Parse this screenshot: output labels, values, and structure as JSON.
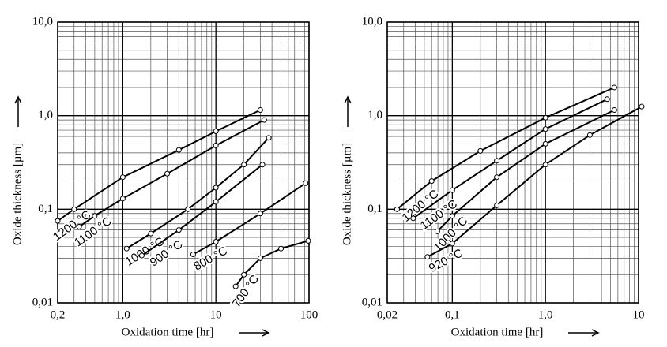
{
  "chart_data": [
    {
      "type": "line",
      "xlabel": "Oxidation time [hr]",
      "ylabel": "Oxide thickness [µm]",
      "xscale": "log",
      "yscale": "log",
      "grid": true,
      "xlim": [
        0.2,
        100
      ],
      "ylim": [
        0.01,
        10
      ],
      "xticks": [
        {
          "value": 0.2,
          "label": "0,2"
        },
        {
          "value": 1,
          "label": "1,0"
        },
        10,
        100
      ],
      "yticks": [
        {
          "value": 0.01,
          "label": "0,01"
        },
        {
          "value": 0.1,
          "label": "0,1"
        },
        {
          "value": 1,
          "label": "1,0"
        },
        {
          "value": 10,
          "label": "10,0"
        }
      ],
      "series": [
        {
          "name": "1200 °C",
          "color": "#000000",
          "x": [
            0.2,
            0.3,
            1,
            4,
            10,
            30
          ],
          "values": [
            0.075,
            0.1,
            0.22,
            0.43,
            0.68,
            1.15
          ]
        },
        {
          "name": "1100 °C",
          "color": "#000000",
          "x": [
            0.34,
            0.5,
            1,
            3,
            10,
            33
          ],
          "values": [
            0.065,
            0.085,
            0.13,
            0.24,
            0.48,
            0.9
          ]
        },
        {
          "name": "1000 °C",
          "color": "#000000",
          "x": [
            1.1,
            2,
            5,
            10,
            20,
            37
          ],
          "values": [
            0.038,
            0.055,
            0.1,
            0.17,
            0.3,
            0.58
          ]
        },
        {
          "name": "900 °C",
          "color": "#000000",
          "x": [
            1.6,
            4,
            10,
            31.6
          ],
          "values": [
            0.032,
            0.06,
            0.12,
            0.3
          ]
        },
        {
          "name": "800 °C",
          "color": "#000000",
          "x": [
            5.7,
            10,
            30,
            92
          ],
          "values": [
            0.033,
            0.045,
            0.09,
            0.19
          ]
        },
        {
          "name": "700 °C",
          "color": "#000000",
          "x": [
            16.3,
            20,
            30,
            50,
            98
          ],
          "values": [
            0.015,
            0.02,
            0.03,
            0.038,
            0.046
          ]
        }
      ]
    },
    {
      "type": "line",
      "xlabel": "Oxidation time [hr]",
      "ylabel": "Oxide thickness [µm]",
      "xscale": "log",
      "yscale": "log",
      "grid": true,
      "xlim": [
        0.02,
        10
      ],
      "ylim": [
        0.01,
        10
      ],
      "xticks": [
        {
          "value": 0.02,
          "label": "0,02"
        },
        {
          "value": 0.1,
          "label": "0,1"
        },
        {
          "value": 1,
          "label": "1,0"
        },
        10
      ],
      "yticks": [
        {
          "value": 0.01,
          "label": "0,01"
        },
        {
          "value": 0.1,
          "label": "0,1"
        },
        {
          "value": 1,
          "label": "1,0"
        },
        {
          "value": 10,
          "label": "10,0"
        }
      ],
      "series": [
        {
          "name": "1200 °C",
          "color": "#000000",
          "x": [
            0.0255,
            0.06,
            0.2,
            1,
            5.5
          ],
          "values": [
            0.1,
            0.2,
            0.42,
            0.95,
            2.0
          ]
        },
        {
          "name": "1100 °C",
          "color": "#000000",
          "x": [
            0.038,
            0.1,
            0.3,
            1,
            4.6
          ],
          "values": [
            0.08,
            0.16,
            0.33,
            0.72,
            1.5
          ]
        },
        {
          "name": "1000 °C",
          "color": "#000000",
          "x": [
            0.069,
            0.1,
            0.3,
            1,
            5.5
          ],
          "values": [
            0.058,
            0.085,
            0.22,
            0.5,
            1.15
          ]
        },
        {
          "name": "920 °C",
          "color": "#000000",
          "x": [
            0.054,
            0.1,
            0.3,
            1,
            3,
            10.8
          ],
          "values": [
            0.031,
            0.043,
            0.11,
            0.3,
            0.62,
            1.25
          ]
        }
      ]
    }
  ]
}
